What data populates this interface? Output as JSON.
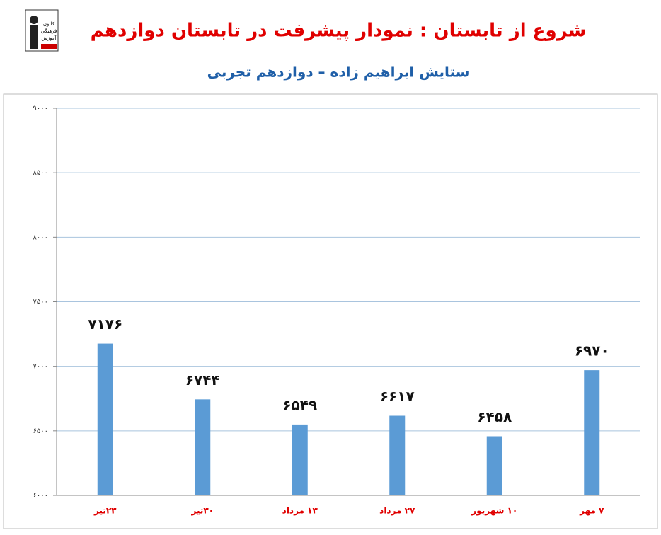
{
  "chart_data": {
    "type": "bar",
    "title": "شروع از تابستان : نمودار پیشرفت در تابستان دوازدهم",
    "subtitle": "ستایش ابراهیم زاده – دوازدهم تجربی",
    "logo": [
      "کانون",
      "فرهنگی",
      "آموزش"
    ],
    "categories": [
      "۲۳تیر",
      "۳۰تیر",
      "۱۳ مرداد",
      "۲۷ مرداد",
      "۱۰ شهریور",
      "۷ مهر"
    ],
    "values": [
      7176,
      6744,
      6549,
      6617,
      6458,
      6970
    ],
    "value_labels": [
      "۷۱۷۶",
      "۶۷۴۴",
      "۶۵۴۹",
      "۶۶۱۷",
      "۶۴۵۸",
      "۶۹۷۰"
    ],
    "color": "#5b9bd5",
    "ylim": [
      6000,
      9000
    ],
    "yticks": [
      {
        "value": 6000,
        "label": "۶۰۰۰"
      },
      {
        "value": 6500,
        "label": "۶۵۰۰"
      },
      {
        "value": 7000,
        "label": "۷۰۰۰"
      },
      {
        "value": 7500,
        "label": "۷۵۰۰"
      },
      {
        "value": 8000,
        "label": "۸۰۰۰"
      },
      {
        "value": 8500,
        "label": "۸۵۰۰"
      },
      {
        "value": 9000,
        "label": "۹۰۰۰"
      }
    ],
    "grid": true
  }
}
